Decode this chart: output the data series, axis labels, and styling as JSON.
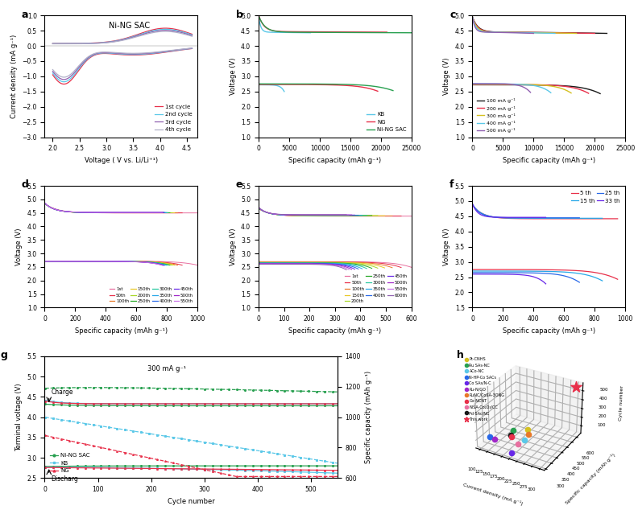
{
  "panel_a": {
    "title": "Ni-NG SAC",
    "xlabel": "Voltage ( V vs. Li/Li⁺¹)",
    "ylabel": "Current density (mA g⁻¹)",
    "xlim": [
      1.8,
      4.7
    ],
    "ylim": [
      -3.0,
      1.0
    ],
    "yticks": [
      -3.0,
      -2.5,
      -2.0,
      -1.5,
      -1.0,
      -0.5,
      0.0,
      0.5,
      1.0
    ],
    "xticks": [
      2.0,
      2.5,
      3.0,
      3.5,
      4.0,
      4.5
    ],
    "cycles": [
      "1st cycle",
      "2nd cycle",
      "3rd cycle",
      "4th cycle"
    ],
    "colors": [
      "#e8304a",
      "#5bc8e8",
      "#9060b0",
      "#b0b0c8"
    ]
  },
  "panel_b": {
    "xlabel": "Specific capacity (mAh g⁻¹)",
    "ylabel": "Voltage (V)",
    "xlim": [
      0,
      25000
    ],
    "ylim": [
      1.0,
      5.0
    ],
    "xticks": [
      0,
      5000,
      10000,
      15000,
      20000,
      25000
    ],
    "yticks": [
      1.0,
      1.5,
      2.0,
      2.5,
      3.0,
      3.5,
      4.0,
      4.5,
      5.0
    ],
    "labels": [
      "KB",
      "NG",
      "Ni-NG SAC"
    ],
    "colors": [
      "#5bc8e8",
      "#e8304a",
      "#28a050"
    ]
  },
  "panel_c": {
    "xlabel": "Specific capacity (mAh g⁻¹)",
    "ylabel": "Voltage (V)",
    "xlim": [
      0,
      25000
    ],
    "ylim": [
      1.0,
      5.0
    ],
    "xticks": [
      0,
      5000,
      10000,
      15000,
      20000,
      25000
    ],
    "yticks": [
      1.0,
      1.5,
      2.0,
      2.5,
      3.0,
      3.5,
      4.0,
      4.5,
      5.0
    ],
    "labels": [
      "100 mA g⁻¹",
      "200 mA g⁻¹",
      "300 mA g⁻¹",
      "400 mA g⁻¹",
      "500 mA g⁻¹"
    ],
    "colors": [
      "#1a1a1a",
      "#e8304a",
      "#d4c020",
      "#5bc8e8",
      "#9060b0"
    ]
  },
  "panel_d": {
    "xlabel": "Specific capacity (mAh g⁻¹)",
    "ylabel": "Voltage (V)",
    "xlim": [
      0,
      1000
    ],
    "ylim": [
      1.0,
      5.5
    ],
    "xticks": [
      0,
      200,
      400,
      600,
      800,
      1000
    ],
    "yticks": [
      1.0,
      1.5,
      2.0,
      2.5,
      3.0,
      3.5,
      4.0,
      4.5,
      5.0,
      5.5
    ],
    "labels": [
      "1st",
      "50th",
      "100th",
      "150th",
      "200th",
      "250th",
      "300th",
      "350th",
      "400th",
      "450th",
      "500th",
      "550th"
    ],
    "colors": [
      "#e870a0",
      "#e8304a",
      "#e87828",
      "#e8c828",
      "#a8d828",
      "#28a828",
      "#28c8a0",
      "#28a8e8",
      "#2868e8",
      "#6828e8",
      "#a028c8",
      "#c870e8"
    ]
  },
  "panel_e": {
    "xlabel": "Specific capacity (mAh g⁻¹)",
    "ylabel": "Voltage (V)",
    "xlim": [
      0,
      600
    ],
    "ylim": [
      1.0,
      5.5
    ],
    "xticks": [
      0,
      100,
      200,
      300,
      400,
      500,
      600
    ],
    "yticks": [
      1.0,
      1.5,
      2.0,
      2.5,
      3.0,
      3.5,
      4.0,
      4.5,
      5.0,
      5.5
    ],
    "labels": [
      "1st",
      "50th",
      "100th",
      "150th",
      "200th",
      "250th",
      "300th",
      "350th",
      "400th",
      "450th",
      "500th",
      "550th",
      "600th"
    ],
    "colors": [
      "#e870a0",
      "#e8304a",
      "#e87828",
      "#e8c828",
      "#a8d828",
      "#28a828",
      "#28c8a0",
      "#28a8e8",
      "#2868e8",
      "#6828e8",
      "#a028c8",
      "#c870e8",
      "#9060b0"
    ]
  },
  "panel_f": {
    "xlabel": "Specific capacity (mAh g⁻¹)",
    "ylabel": "Voltage (V)",
    "xlim": [
      0,
      1000
    ],
    "ylim": [
      1.5,
      5.5
    ],
    "xticks": [
      0,
      200,
      400,
      600,
      800,
      1000
    ],
    "yticks": [
      1.5,
      2.0,
      2.5,
      3.0,
      3.5,
      4.0,
      4.5,
      5.0,
      5.5
    ],
    "labels": [
      "5 th",
      "15 th",
      "25 th",
      "33 th"
    ],
    "colors": [
      "#e8304a",
      "#28a8e8",
      "#2868e8",
      "#6828e8"
    ]
  },
  "panel_g": {
    "xlabel": "Cycle number",
    "ylabel_left": "Terminal voltage (V)",
    "ylabel_right": "Specific capacity (mAh g⁻¹)",
    "xlim": [
      0,
      550
    ],
    "ylim_left": [
      2.5,
      5.5
    ],
    "ylim_right": [
      600,
      1400
    ],
    "labels": [
      "Ni-NG SAC",
      "KB",
      "NG"
    ],
    "colors": [
      "#28a050",
      "#5bc8e8",
      "#e8304a"
    ],
    "annotation": "300 mA g⁻¹"
  },
  "panel_h": {
    "xlabel": "Current density (mA g⁻¹)",
    "ylabel": "Specific capacity (mAh g⁻¹)",
    "zlabel": "Cycle number",
    "legend_labels": [
      "Pt-CNHS",
      "Ru SAs-NC",
      "ACo-NC",
      "N-HP-Co SACs",
      "Co SAs/N-C",
      "Ru-N/GO",
      "RuNC/CoSA-3ONG",
      "Co-NCNT",
      "NiSA-Co₂O₃/CC",
      "Pd SAc/NC",
      "This work"
    ],
    "colors": [
      "#d4c020",
      "#28a050",
      "#5bc8e8",
      "#2868e8",
      "#6828e8",
      "#a028c8",
      "#e87828",
      "#e8304a",
      "#e870a0",
      "#1a1a1a",
      "#e8304a"
    ],
    "markers": [
      "o",
      "o",
      "o",
      "o",
      "o",
      "o",
      "o",
      "o",
      "o",
      "o",
      "*"
    ],
    "sizes": [
      20,
      20,
      20,
      20,
      20,
      20,
      20,
      20,
      20,
      20,
      100
    ],
    "points": [
      [
        180,
        500,
        80
      ],
      [
        150,
        450,
        100
      ],
      [
        200,
        420,
        75
      ],
      [
        100,
        370,
        60
      ],
      [
        200,
        310,
        50
      ],
      [
        120,
        360,
        70
      ],
      [
        200,
        460,
        90
      ],
      [
        160,
        410,
        80
      ],
      [
        200,
        360,
        95
      ],
      [
        150,
        430,
        65
      ],
      [
        300,
        620,
        550
      ]
    ]
  }
}
